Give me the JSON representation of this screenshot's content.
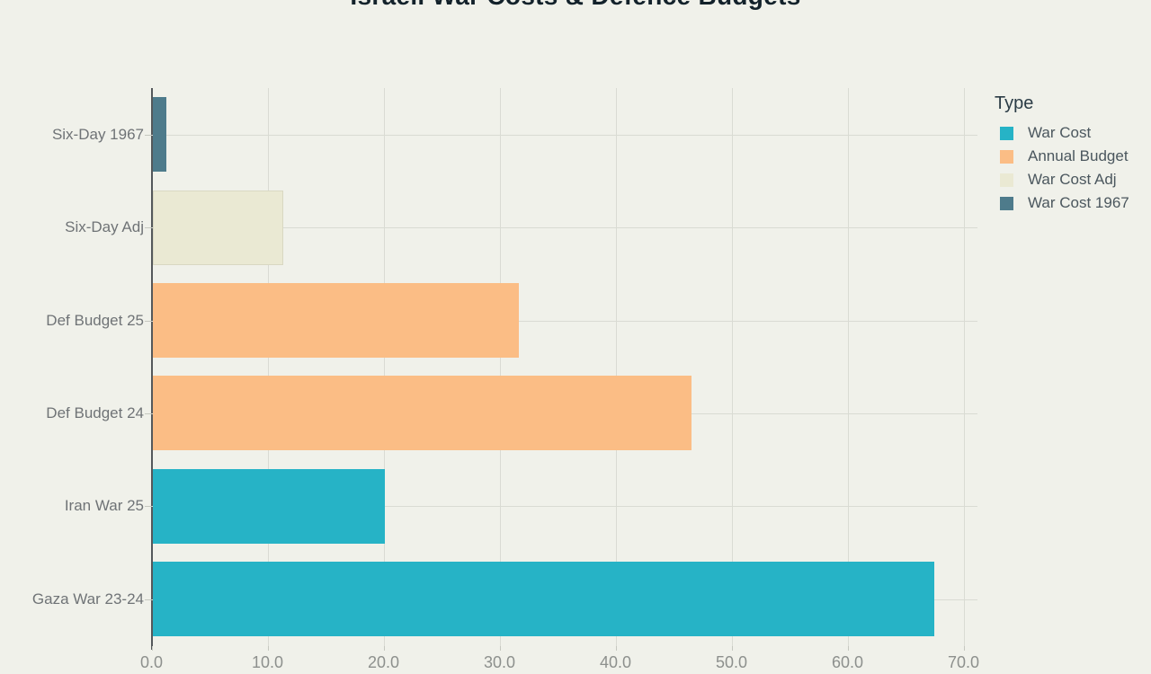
{
  "title": "Israeli War Costs & Defence Budgets",
  "legend": {
    "title": "Type",
    "items": [
      {
        "label": "War Cost",
        "color": "#26b3c6"
      },
      {
        "label": "Annual Budget",
        "color": "#fbbd85"
      },
      {
        "label": "War Cost Adj",
        "color": "#eae9d3"
      },
      {
        "label": "War Cost 1967",
        "color": "#4e7b8b"
      }
    ]
  },
  "chart_data": {
    "type": "bar",
    "orientation": "horizontal",
    "title": "Israeli War Costs & Defence Budgets",
    "categories": [
      "Six-Day 1967",
      "Six-Day Adj",
      "Def Budget 25",
      "Def Budget 24",
      "Iran War 25",
      "Gaza War 23-24"
    ],
    "values": [
      1.2,
      11.3,
      31.6,
      46.5,
      20.0,
      67.4
    ],
    "types": [
      "War Cost 1967",
      "War Cost Adj",
      "Annual Budget",
      "Annual Budget",
      "War Cost",
      "War Cost"
    ],
    "x_ticks": [
      "0.0",
      "10.0",
      "20.0",
      "30.0",
      "40.0",
      "50.0",
      "60.0",
      "70.0"
    ],
    "xlim": [
      0,
      71.2
    ],
    "xlabel": "",
    "ylabel": "",
    "grid": true,
    "legend_position": "right",
    "background": "#f0f1ea"
  }
}
